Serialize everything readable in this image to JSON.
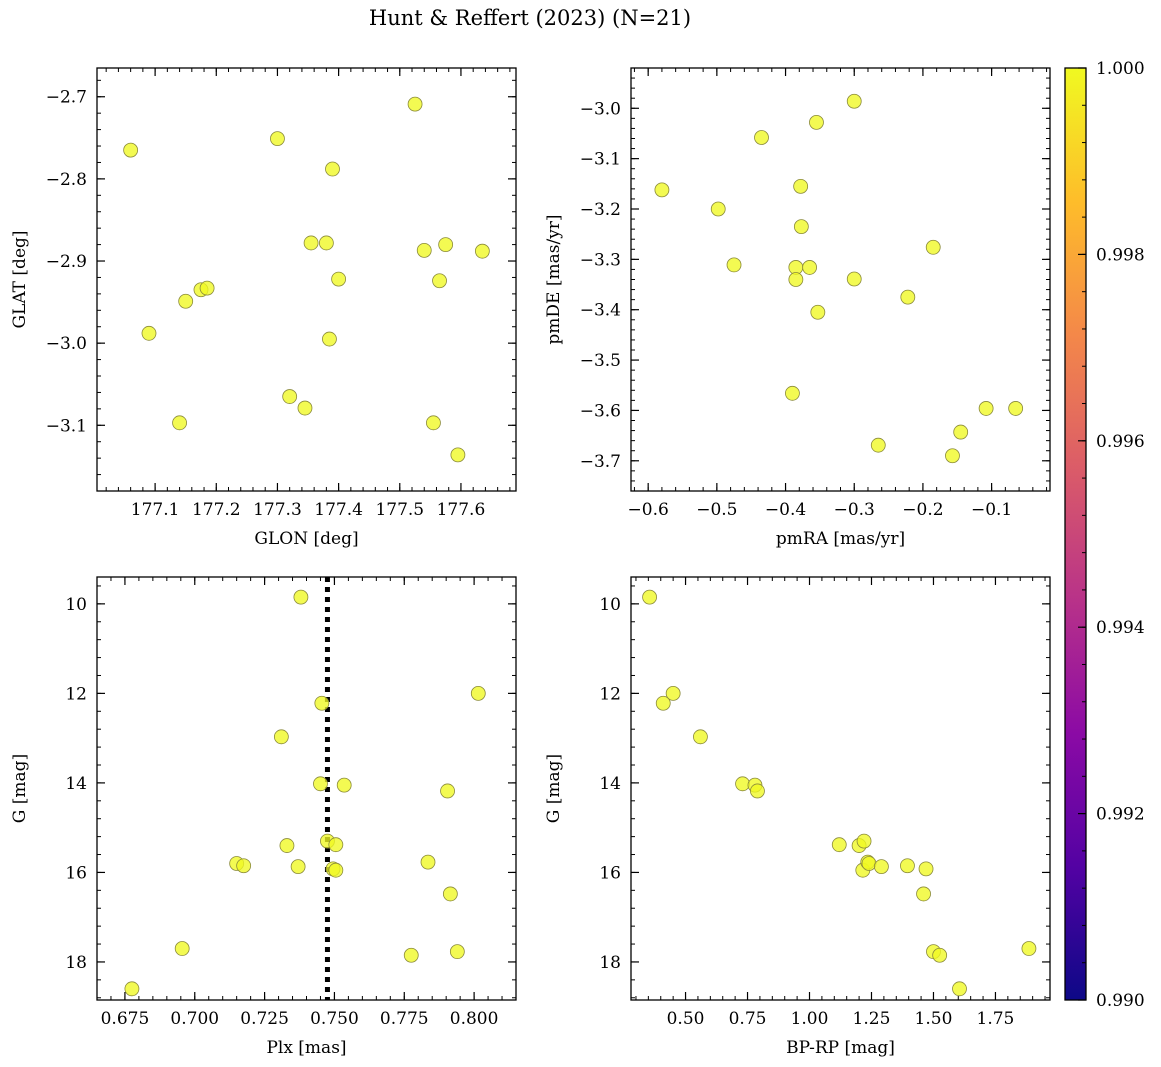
{
  "figure": {
    "title": "Hunt & Reffert (2023) (N=21)",
    "point_color": "#f0f921",
    "point_edge": "#8a8a3a"
  },
  "colorbar": {
    "min": 0.99,
    "max": 1.0,
    "ticks": [
      "0.990",
      "0.992",
      "0.994",
      "0.996",
      "0.998",
      "1.000"
    ],
    "colormap": "plasma",
    "stops": [
      "#0d0887",
      "#5302a3",
      "#8b0aa5",
      "#b83289",
      "#db5c68",
      "#f48849",
      "#febd2a",
      "#f0f921"
    ]
  },
  "chart_data": [
    {
      "type": "scatter",
      "xlabel": "GLON [deg]",
      "ylabel": "GLAT [deg]",
      "xlim": [
        177.005,
        177.69
      ],
      "ylim": [
        -3.18,
        -2.665
      ],
      "x_ticks": [
        177.1,
        177.2,
        177.3,
        177.4,
        177.5,
        177.6
      ],
      "x_tick_labels": [
        "177.1",
        "177.2",
        "177.3",
        "177.4",
        "177.5",
        "177.6"
      ],
      "y_ticks": [
        -3.1,
        -3.0,
        -2.9,
        -2.8,
        -2.7
      ],
      "y_tick_labels": [
        "−3.1",
        "−3.0",
        "−2.9",
        "−2.8",
        "−2.7"
      ],
      "x_minor": 0.02,
      "y_minor": 0.02,
      "y_inverted": false,
      "points": [
        {
          "x": 177.06,
          "y": -2.765
        },
        {
          "x": 177.09,
          "y": -2.988
        },
        {
          "x": 177.14,
          "y": -3.097
        },
        {
          "x": 177.15,
          "y": -2.949
        },
        {
          "x": 177.175,
          "y": -2.935
        },
        {
          "x": 177.185,
          "y": -2.933
        },
        {
          "x": 177.3,
          "y": -2.751
        },
        {
          "x": 177.32,
          "y": -3.065
        },
        {
          "x": 177.345,
          "y": -3.079
        },
        {
          "x": 177.355,
          "y": -2.878
        },
        {
          "x": 177.38,
          "y": -2.878
        },
        {
          "x": 177.385,
          "y": -2.995
        },
        {
          "x": 177.39,
          "y": -2.788
        },
        {
          "x": 177.4,
          "y": -2.922
        },
        {
          "x": 177.525,
          "y": -2.709
        },
        {
          "x": 177.54,
          "y": -2.887
        },
        {
          "x": 177.555,
          "y": -3.097
        },
        {
          "x": 177.565,
          "y": -2.924
        },
        {
          "x": 177.575,
          "y": -2.88
        },
        {
          "x": 177.595,
          "y": -3.136
        },
        {
          "x": 177.635,
          "y": -2.888
        }
      ]
    },
    {
      "type": "scatter",
      "xlabel": "pmRA [mas/yr]",
      "ylabel": "pmDE [mas/yr]",
      "xlim": [
        -0.625,
        -0.015
      ],
      "ylim": [
        -3.76,
        -2.92
      ],
      "x_ticks": [
        -0.6,
        -0.5,
        -0.4,
        -0.3,
        -0.2,
        -0.1
      ],
      "x_tick_labels": [
        "−0.6",
        "−0.5",
        "−0.4",
        "−0.3",
        "−0.2",
        "−0.1"
      ],
      "y_ticks": [
        -3.7,
        -3.6,
        -3.5,
        -3.4,
        -3.3,
        -3.2,
        -3.1,
        -3.0
      ],
      "y_tick_labels": [
        "−3.7",
        "−3.6",
        "−3.5",
        "−3.4",
        "−3.3",
        "−3.2",
        "−3.1",
        "−3.0"
      ],
      "x_minor": 0.02,
      "y_minor": 0.02,
      "y_inverted": false,
      "points": [
        {
          "x": -0.58,
          "y": -3.162
        },
        {
          "x": -0.498,
          "y": -3.2
        },
        {
          "x": -0.475,
          "y": -3.311
        },
        {
          "x": -0.435,
          "y": -3.058
        },
        {
          "x": -0.39,
          "y": -3.566
        },
        {
          "x": -0.385,
          "y": -3.316
        },
        {
          "x": -0.385,
          "y": -3.34
        },
        {
          "x": -0.378,
          "y": -3.155
        },
        {
          "x": -0.377,
          "y": -3.235
        },
        {
          "x": -0.365,
          "y": -3.316
        },
        {
          "x": -0.355,
          "y": -3.028
        },
        {
          "x": -0.353,
          "y": -3.405
        },
        {
          "x": -0.3,
          "y": -2.986
        },
        {
          "x": -0.3,
          "y": -3.339
        },
        {
          "x": -0.265,
          "y": -3.669
        },
        {
          "x": -0.222,
          "y": -3.375
        },
        {
          "x": -0.185,
          "y": -3.276
        },
        {
          "x": -0.157,
          "y": -3.69
        },
        {
          "x": -0.145,
          "y": -3.643
        },
        {
          "x": -0.108,
          "y": -3.596
        },
        {
          "x": -0.065,
          "y": -3.596
        }
      ]
    },
    {
      "type": "scatter",
      "xlabel": "Plx [mas]",
      "ylabel": "G [mag]",
      "xlim": [
        0.665,
        0.815
      ],
      "ylim": [
        18.85,
        9.4
      ],
      "x_ticks": [
        0.675,
        0.7,
        0.725,
        0.75,
        0.775,
        0.8
      ],
      "x_tick_labels": [
        "0.675",
        "0.700",
        "0.725",
        "0.750",
        "0.775",
        "0.800"
      ],
      "y_ticks": [
        10,
        12,
        14,
        16,
        18
      ],
      "y_tick_labels": [
        "10",
        "12",
        "14",
        "16",
        "18"
      ],
      "x_minor": 0.005,
      "y_minor": 0.4,
      "y_inverted": true,
      "vline": {
        "x": 0.7475,
        "style": "dotted",
        "color": "#000000"
      },
      "points": [
        {
          "x": 0.6775,
          "y": 18.6
        },
        {
          "x": 0.6955,
          "y": 17.7
        },
        {
          "x": 0.715,
          "y": 15.8
        },
        {
          "x": 0.7175,
          "y": 15.85
        },
        {
          "x": 0.731,
          "y": 12.97
        },
        {
          "x": 0.733,
          "y": 15.4
        },
        {
          "x": 0.737,
          "y": 15.87
        },
        {
          "x": 0.738,
          "y": 9.85
        },
        {
          "x": 0.745,
          "y": 14.02
        },
        {
          "x": 0.7455,
          "y": 12.22
        },
        {
          "x": 0.7475,
          "y": 15.3
        },
        {
          "x": 0.7495,
          "y": 15.92
        },
        {
          "x": 0.7505,
          "y": 15.95
        },
        {
          "x": 0.7505,
          "y": 15.38
        },
        {
          "x": 0.7535,
          "y": 14.05
        },
        {
          "x": 0.7775,
          "y": 17.85
        },
        {
          "x": 0.7835,
          "y": 15.77
        },
        {
          "x": 0.7905,
          "y": 14.18
        },
        {
          "x": 0.7915,
          "y": 16.48
        },
        {
          "x": 0.794,
          "y": 17.77
        },
        {
          "x": 0.8015,
          "y": 12.0
        }
      ]
    },
    {
      "type": "scatter",
      "xlabel": "BP-RP [mag]",
      "ylabel": "G [mag]",
      "xlim": [
        0.28,
        1.97
      ],
      "ylim": [
        18.85,
        9.4
      ],
      "x_ticks": [
        0.5,
        0.75,
        1.0,
        1.25,
        1.5,
        1.75
      ],
      "x_tick_labels": [
        "0.50",
        "0.75",
        "1.00",
        "1.25",
        "1.50",
        "1.75"
      ],
      "y_ticks": [
        10,
        12,
        14,
        16,
        18
      ],
      "y_tick_labels": [
        "10",
        "12",
        "14",
        "16",
        "18"
      ],
      "x_minor": 0.05,
      "y_minor": 0.4,
      "y_inverted": true,
      "points": [
        {
          "x": 0.355,
          "y": 9.85
        },
        {
          "x": 0.41,
          "y": 12.22
        },
        {
          "x": 0.45,
          "y": 12.0
        },
        {
          "x": 0.56,
          "y": 12.97
        },
        {
          "x": 0.73,
          "y": 14.02
        },
        {
          "x": 0.78,
          "y": 14.05
        },
        {
          "x": 0.79,
          "y": 14.18
        },
        {
          "x": 1.12,
          "y": 15.38
        },
        {
          "x": 1.2,
          "y": 15.4
        },
        {
          "x": 1.215,
          "y": 15.95
        },
        {
          "x": 1.22,
          "y": 15.3
        },
        {
          "x": 1.235,
          "y": 15.77
        },
        {
          "x": 1.24,
          "y": 15.8
        },
        {
          "x": 1.29,
          "y": 15.87
        },
        {
          "x": 1.395,
          "y": 15.85
        },
        {
          "x": 1.46,
          "y": 16.48
        },
        {
          "x": 1.47,
          "y": 15.92
        },
        {
          "x": 1.5,
          "y": 17.77
        },
        {
          "x": 1.525,
          "y": 17.85
        },
        {
          "x": 1.605,
          "y": 18.6
        },
        {
          "x": 1.885,
          "y": 17.7
        }
      ]
    }
  ]
}
